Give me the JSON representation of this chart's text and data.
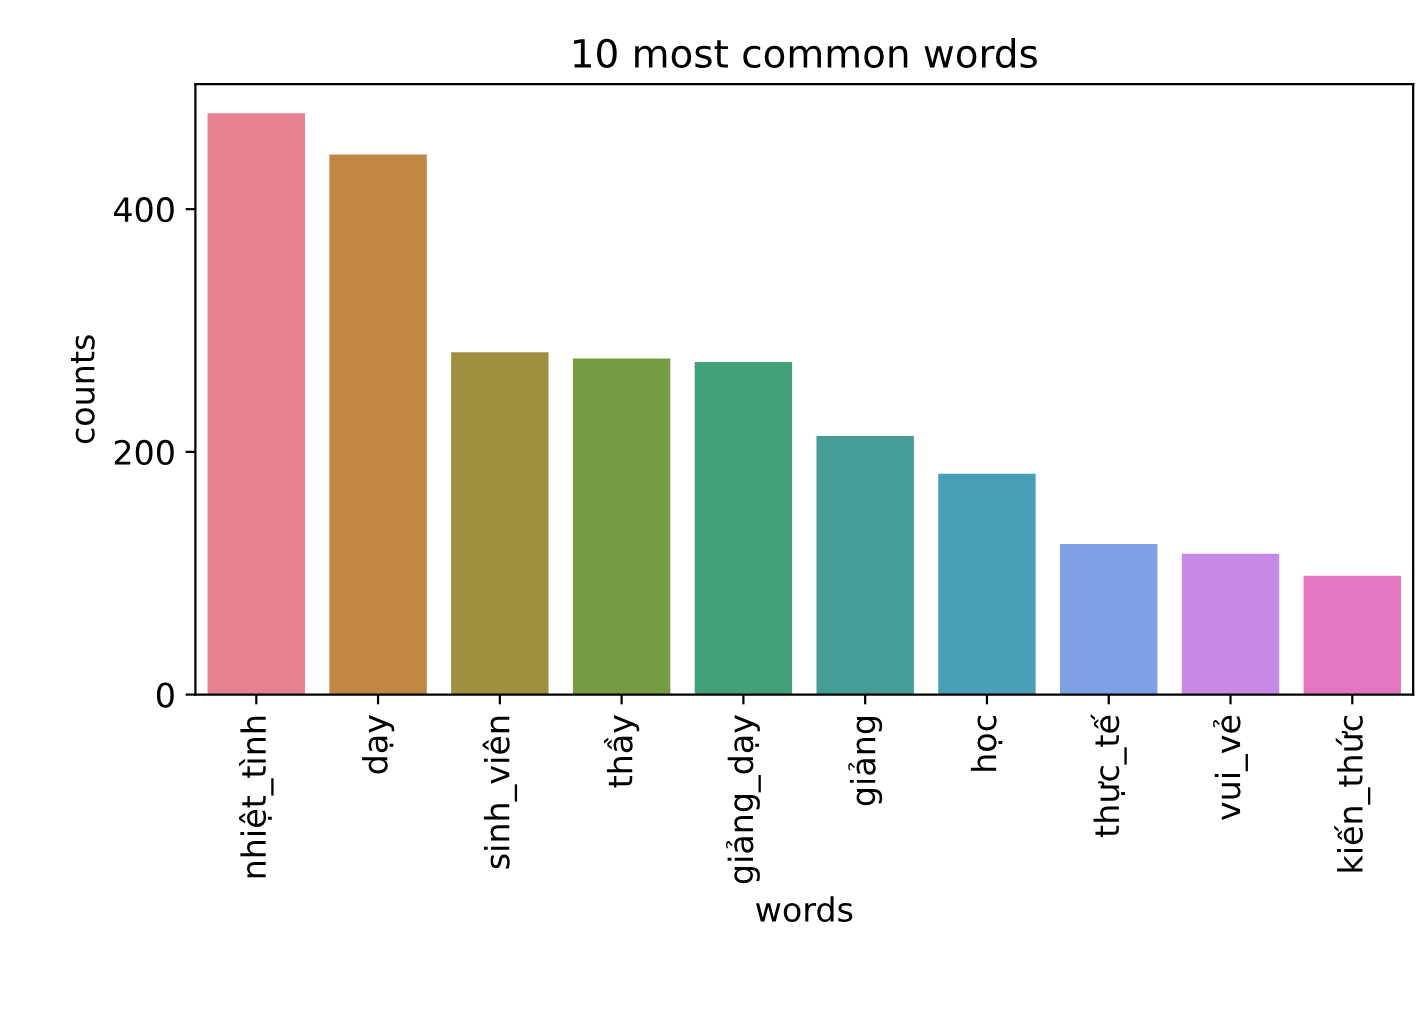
{
  "chart_data": {
    "type": "bar",
    "title": "10 most common words",
    "xlabel": "words",
    "ylabel": "counts",
    "categories": [
      "nhiệt_tình",
      "dạy",
      "sinh_viên",
      "thầy",
      "giảng_dạy",
      "giảng",
      "học",
      "thực_tế",
      "vui_vẻ",
      "kiến_thức"
    ],
    "values": [
      479,
      445,
      282,
      277,
      274,
      213,
      182,
      124,
      116,
      98
    ],
    "colors": [
      "#e58190",
      "#c38543",
      "#9f903f",
      "#759b43",
      "#43a078",
      "#459d97",
      "#499fb5",
      "#7fa0e5",
      "#c689e5",
      "#e376c1"
    ],
    "ylim": [
      0,
      503
    ],
    "yticks": [
      0,
      200,
      400
    ],
    "grid": false
  }
}
